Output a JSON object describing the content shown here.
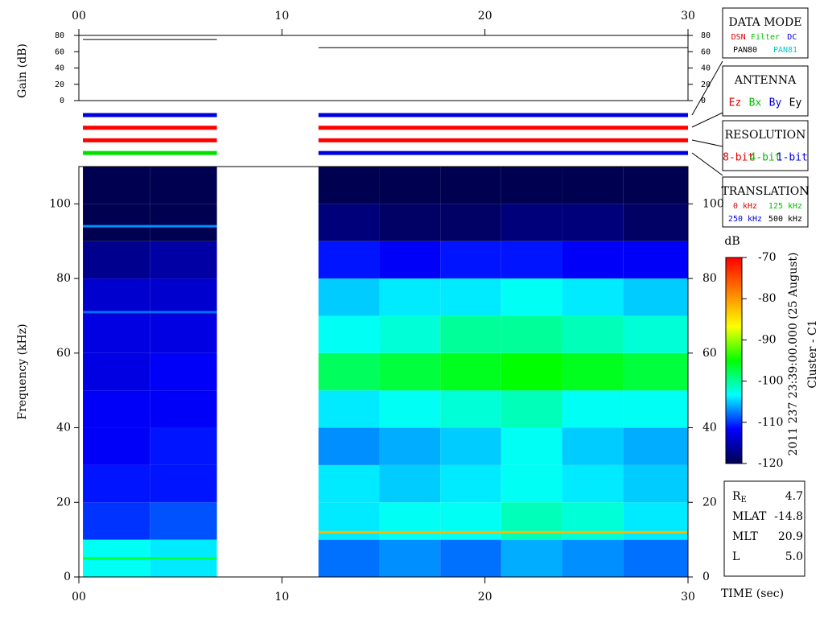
{
  "chart_data": {
    "type": "spectrogram",
    "xlabel": "TIME (sec)",
    "ylabel": "Frequency (kHz)",
    "xlim": [
      0,
      30
    ],
    "xticks": [
      {
        "value": 0,
        "label": "00"
      },
      10,
      20,
      30
    ],
    "ylim": [
      0,
      110
    ],
    "yticks": [
      0,
      20,
      40,
      60,
      80,
      100
    ],
    "bins": [
      0,
      10,
      20,
      30,
      40,
      50,
      60,
      70,
      80,
      90,
      100,
      110
    ],
    "columns": [
      {
        "start": 0.2,
        "end": 3.5,
        "values": [
          -103,
          -110,
          -111,
          -112,
          -112,
          -113,
          -113,
          -114,
          -117,
          -120,
          -120
        ]
      },
      {
        "start": 3.5,
        "end": 6.8,
        "values": [
          -104,
          -109,
          -111,
          -111,
          -112,
          -112,
          -113,
          -114,
          -116,
          -120,
          -120
        ]
      },
      {
        "start": 11.8,
        "end": 14.8,
        "values": [
          -108,
          -104,
          -104,
          -107,
          -104,
          -98,
          -103,
          -105,
          -111,
          -118,
          -120
        ]
      },
      {
        "start": 14.8,
        "end": 17.8,
        "values": [
          -107,
          -103,
          -105,
          -106,
          -103,
          -97,
          -102,
          -104,
          -112,
          -119,
          -120
        ]
      },
      {
        "start": 17.8,
        "end": 20.8,
        "values": [
          -108,
          -103,
          -104,
          -105,
          -102,
          -96,
          -100,
          -104,
          -111,
          -119,
          -120
        ]
      },
      {
        "start": 20.8,
        "end": 23.8,
        "values": [
          -106,
          -101,
          -103,
          -103,
          -101,
          -95,
          -100,
          -103,
          -111,
          -118,
          -120
        ]
      },
      {
        "start": 23.8,
        "end": 26.8,
        "values": [
          -107,
          -102,
          -104,
          -105,
          -103,
          -96,
          -101,
          -104,
          -112,
          -118,
          -120
        ]
      },
      {
        "start": 26.8,
        "end": 30,
        "values": [
          -108,
          -104,
          -105,
          -106,
          -103,
          -97,
          -102,
          -105,
          -112,
          -119,
          -120
        ]
      }
    ],
    "lines": [
      {
        "freq": 94,
        "start": 0.2,
        "end": 6.8,
        "value": -107
      },
      {
        "freq": 71,
        "start": 0.2,
        "end": 6.8,
        "value": -108
      },
      {
        "freq": 5,
        "start": 0.2,
        "end": 6.8,
        "value": -97
      },
      {
        "freq": 12,
        "start": 11.8,
        "end": 30,
        "value": -82
      }
    ],
    "colorbar": {
      "label": "dB",
      "lim": [
        -120,
        -70
      ],
      "ticks": [
        -70,
        -80,
        -90,
        -100,
        -110,
        -120
      ],
      "colors": [
        "#000050",
        "#0000ff",
        "#00ffff",
        "#00ff00",
        "#ffff00",
        "#ff8000",
        "#ff0000"
      ]
    },
    "gain": {
      "ylabel": "Gain (dB)",
      "ylim": [
        0,
        80
      ],
      "yticks": [
        0,
        20,
        40,
        60,
        80
      ],
      "segments": [
        {
          "start": 0.2,
          "end": 6.8,
          "value": 75
        },
        {
          "start": 11.8,
          "end": 30,
          "value": 65
        }
      ]
    },
    "status": [
      [
        {
          "start": 0.2,
          "end": 6.8,
          "color": "#0000e0"
        },
        {
          "start": 11.8,
          "end": 30,
          "color": "#0000e0"
        }
      ],
      [
        {
          "start": 0.2,
          "end": 6.8,
          "color": "#ff0000"
        },
        {
          "start": 11.8,
          "end": 30,
          "color": "#ff0000"
        }
      ],
      [
        {
          "start": 0.2,
          "end": 6.8,
          "color": "#ff0000"
        },
        {
          "start": 11.8,
          "end": 30,
          "color": "#ff0000"
        }
      ],
      [
        {
          "start": 0.2,
          "end": 6.8,
          "color": "#00e000"
        },
        {
          "start": 11.8,
          "end": 30,
          "color": "#0000e0"
        }
      ]
    ],
    "panels": [
      {
        "title": "DATA MODE",
        "rows": [
          [
            {
              "text": "DSN",
              "color": "#e00000"
            },
            {
              "text": "Filter",
              "color": "#00c000"
            },
            {
              "text": "DC",
              "color": "#0000e0"
            }
          ],
          [
            {
              "text": "PAN80",
              "color": "#000000"
            },
            {
              "text": "PAN81",
              "color": "#00c8c8"
            }
          ]
        ]
      },
      {
        "title": "ANTENNA",
        "rows": [
          [
            {
              "text": "Ez",
              "color": "#e00000"
            },
            {
              "text": "Bx",
              "color": "#00c000"
            },
            {
              "text": "By",
              "color": "#0000e0"
            },
            {
              "text": "Ey",
              "color": "#000000"
            }
          ]
        ]
      },
      {
        "title": "RESOLUTION",
        "rows": [
          [
            {
              "text": "8-bit",
              "color": "#e00000"
            },
            {
              "text": "4-bit",
              "color": "#00c000"
            },
            {
              "text": "1-bit",
              "color": "#0000e0"
            }
          ]
        ]
      },
      {
        "title": "TRANSLATION",
        "rows": [
          [
            {
              "text": "0 kHz",
              "color": "#e00000"
            },
            {
              "text": "125 kHz",
              "color": "#00c000"
            }
          ],
          [
            {
              "text": "250 kHz",
              "color": "#0000e0"
            },
            {
              "text": "500 kHz",
              "color": "#000000"
            }
          ]
        ]
      }
    ],
    "date": "2011 237 23:39:00.000 (25 August)",
    "spacecraft": "Cluster - C1",
    "orbit": [
      {
        "label": "R",
        "sub": "E",
        "value": 4.7
      },
      {
        "label": "MLAT",
        "value": -14.8
      },
      {
        "label": "MLT",
        "value": 20.9
      },
      {
        "label": "L",
        "value": 5,
        "value_label": "5.0"
      }
    ]
  }
}
